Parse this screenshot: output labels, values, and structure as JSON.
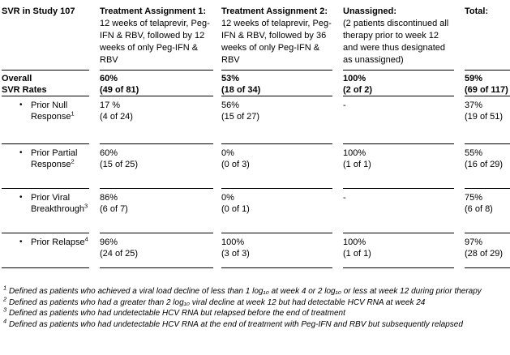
{
  "header": {
    "col0": "SVR in Study 107",
    "col1_title": "Treatment Assignment 1:",
    "col1_desc": "12 weeks of telaprevir, Peg-IFN & RBV, followed by 12 weeks of only Peg-IFN & RBV",
    "col2_title": "Treatment Assignment 2:",
    "col2_desc": "12 weeks of telaprevir, Peg-IFN & RBV, followed by 36 weeks of only Peg-IFN & RBV",
    "col3_title": "Unassigned:",
    "col3_desc": "(2 patients discontinued all therapy prior to week 12 and were thus designated as unassigned)",
    "col4_title": "Total:"
  },
  "bullet_char": "•",
  "rows": [
    {
      "label_line1": "Overall",
      "label_line2": "SVR Rates",
      "cells": [
        {
          "pct": "60%",
          "n": "(49 of 81)"
        },
        {
          "pct": "53%",
          "n": "(18 of 34)"
        },
        {
          "pct": "100%",
          "n": "(2 of 2)"
        },
        {
          "pct": "59%",
          "n": "(69 of 117)"
        }
      ]
    },
    {
      "label": "Prior Null Response",
      "footnote_ref": "1",
      "cells": [
        {
          "pct": "17 %",
          "n": "(4 of 24)"
        },
        {
          "pct": "56%",
          "n": "(15 of 27)"
        },
        {
          "pct": "-",
          "n": ""
        },
        {
          "pct": "37%",
          "n": "(19 of 51)"
        }
      ]
    },
    {
      "label": "Prior Partial Response",
      "footnote_ref": "2",
      "cells": [
        {
          "pct": "60%",
          "n": "(15 of 25)"
        },
        {
          "pct": "0%",
          "n": "(0 of 3)"
        },
        {
          "pct": "100%",
          "n": "(1 of 1)"
        },
        {
          "pct": "55%",
          "n": "(16 of 29)"
        }
      ]
    },
    {
      "label": "Prior Viral Breakthrough",
      "footnote_ref": "3",
      "cells": [
        {
          "pct": "86%",
          "n": "(6 of 7)"
        },
        {
          "pct": "0%",
          "n": "(0 of 1)"
        },
        {
          "pct": "-",
          "n": ""
        },
        {
          "pct": "75%",
          "n": "(6 of 8)"
        }
      ]
    },
    {
      "label": "Prior Relapse",
      "footnote_ref": "4",
      "cells": [
        {
          "pct": "96%",
          "n": "(24 of 25)"
        },
        {
          "pct": "100%",
          "n": "(3 of 3)"
        },
        {
          "pct": "100%",
          "n": "(1 of 1)"
        },
        {
          "pct": "97%",
          "n": "(28 of 29)"
        }
      ]
    }
  ],
  "footnotes": [
    {
      "marker": "1",
      "text": "Defined as patients who achieved a viral load decline of less than 1 log₁₀ at week 4 or 2 log₁₀ or less at week 12 during prior therapy"
    },
    {
      "marker": "2",
      "text": "Defined as patients who had a greater than 2 log₁₀ viral decline at week 12 but had detectable HCV RNA at week 24"
    },
    {
      "marker": "3",
      "text": "Defined as patients who had undetectable HCV RNA but relapsed before the end of treatment"
    },
    {
      "marker": "4",
      "text": "Defined as patients who had undetectable HCV RNA at the end of treatment with Peg-IFN and RBV but subsequently relapsed"
    }
  ]
}
